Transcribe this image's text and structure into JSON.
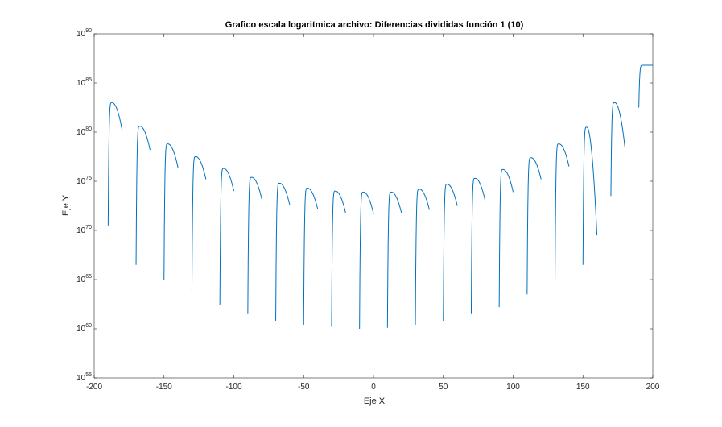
{
  "chart_data": {
    "type": "line",
    "title": "Grafico escala logaritmica archivo: Diferencias divididas función 1 (10)",
    "xlabel": "Eje X",
    "ylabel": "Eje Y",
    "xlim": [
      -200,
      200
    ],
    "ylim": [
      1e+55,
      1e+90
    ],
    "yscale": "log",
    "grid": false,
    "legend": "none",
    "line_color": "#0072BD",
    "xticks": [
      -200,
      -150,
      -100,
      -50,
      0,
      50,
      100,
      150,
      200
    ],
    "xtick_labels": [
      "-200",
      "-150",
      "-100",
      "-50",
      "0",
      "50",
      "100",
      "150",
      "200"
    ],
    "yticks": [
      55,
      60,
      65,
      70,
      75,
      80,
      85,
      90
    ],
    "ytick_labels": [
      {
        "base": "10",
        "exp": "55"
      },
      {
        "base": "10",
        "exp": "60"
      },
      {
        "base": "10",
        "exp": "65"
      },
      {
        "base": "10",
        "exp": "70"
      },
      {
        "base": "10",
        "exp": "75"
      },
      {
        "base": "10",
        "exp": "80"
      },
      {
        "base": "10",
        "exp": "85"
      },
      {
        "base": "10",
        "exp": "90"
      }
    ],
    "series": [
      {
        "y_unit": "log10",
        "segments": [
          {
            "x_start": -190,
            "x_end": -180,
            "y_start": 70.5,
            "y_peak": 83.0,
            "y_end": 80.2
          },
          {
            "x_start": -170,
            "x_end": -160,
            "y_start": 66.5,
            "y_peak": 80.6,
            "y_end": 78.2
          },
          {
            "x_start": -150,
            "x_end": -140,
            "y_start": 65.0,
            "y_peak": 78.8,
            "y_end": 76.4
          },
          {
            "x_start": -130,
            "x_end": -120,
            "y_start": 63.8,
            "y_peak": 77.5,
            "y_end": 75.2
          },
          {
            "x_start": -110,
            "x_end": -100,
            "y_start": 62.4,
            "y_peak": 76.3,
            "y_end": 74.0
          },
          {
            "x_start": -90,
            "x_end": -80,
            "y_start": 61.5,
            "y_peak": 75.4,
            "y_end": 73.2
          },
          {
            "x_start": -70,
            "x_end": -60,
            "y_start": 60.8,
            "y_peak": 74.8,
            "y_end": 72.6
          },
          {
            "x_start": -50,
            "x_end": -40,
            "y_start": 60.4,
            "y_peak": 74.3,
            "y_end": 72.2
          },
          {
            "x_start": -30,
            "x_end": -20,
            "y_start": 60.2,
            "y_peak": 74.0,
            "y_end": 71.8
          },
          {
            "x_start": -10,
            "x_end": 0,
            "y_start": 60.0,
            "y_peak": 73.9,
            "y_end": 71.7
          },
          {
            "x_start": 10,
            "x_end": 20,
            "y_start": 60.1,
            "y_peak": 73.9,
            "y_end": 71.8
          },
          {
            "x_start": 30,
            "x_end": 40,
            "y_start": 60.4,
            "y_peak": 74.2,
            "y_end": 72.1
          },
          {
            "x_start": 50,
            "x_end": 60,
            "y_start": 60.8,
            "y_peak": 74.7,
            "y_end": 72.5
          },
          {
            "x_start": 70,
            "x_end": 80,
            "y_start": 61.5,
            "y_peak": 75.3,
            "y_end": 73.0
          },
          {
            "x_start": 90,
            "x_end": 100,
            "y_start": 62.2,
            "y_peak": 76.2,
            "y_end": 73.9
          },
          {
            "x_start": 110,
            "x_end": 120,
            "y_start": 63.5,
            "y_peak": 77.4,
            "y_end": 75.2
          },
          {
            "x_start": 130,
            "x_end": 140,
            "y_start": 65.0,
            "y_peak": 78.8,
            "y_end": 76.5
          },
          {
            "x_start": 150,
            "x_end": 160,
            "y_start": 66.5,
            "y_peak": 80.5,
            "y_end": 69.5
          },
          {
            "x_start": 170,
            "x_end": 180,
            "y_start": 73.5,
            "y_peak": 83.0,
            "y_end": 78.5
          },
          {
            "x_start": 190,
            "x_end": 200,
            "y_start": 82.5,
            "y_peak": 86.8,
            "y_end": 86.8
          }
        ]
      }
    ]
  }
}
